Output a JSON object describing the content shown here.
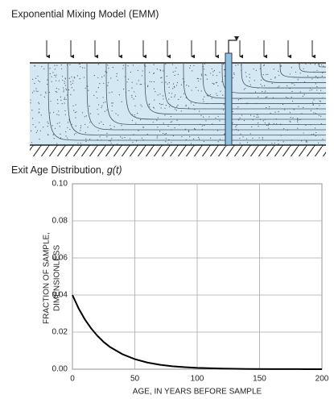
{
  "diagram": {
    "title": "Exponential Mixing Model (EMM)"
  },
  "chart_data": {
    "type": "line",
    "title": [
      "Exit Age Distribution,",
      "g(t)"
    ],
    "x_label": "AGE, IN YEARS BEFORE SAMPLE",
    "y_label": [
      "FRACTION OF SAMPLE,",
      "DIMENSIONLESS"
    ],
    "x": [
      0,
      5,
      10,
      15,
      20,
      25,
      30,
      40,
      50,
      60,
      70,
      80,
      90,
      100,
      120,
      140,
      160,
      180,
      200
    ],
    "series": [
      {
        "color": "#000000",
        "values": [
          0.04,
          0.0327,
          0.0268,
          0.022,
          0.018,
          0.0147,
          0.012,
          0.0081,
          0.0054,
          0.0036,
          0.0024,
          0.0016,
          0.0011,
          0.0007,
          0.0003,
          0.0001,
          5e-05,
          3e-05,
          1e-05
        ]
      }
    ],
    "xlim": [
      0,
      200
    ],
    "ylim": [
      0,
      0.1
    ],
    "xticks": [
      0,
      50,
      100,
      150,
      200
    ],
    "yticks": [
      {
        "value": 0,
        "label": "0.00"
      },
      {
        "value": 0.02,
        "label": "0.02"
      },
      {
        "value": 0.04,
        "label": "0.04"
      },
      {
        "value": 0.06,
        "label": "0.06"
      },
      {
        "value": 0.08,
        "label": "0.08"
      },
      {
        "value": 0.1,
        "label": "0.10"
      }
    ],
    "grid": true
  }
}
